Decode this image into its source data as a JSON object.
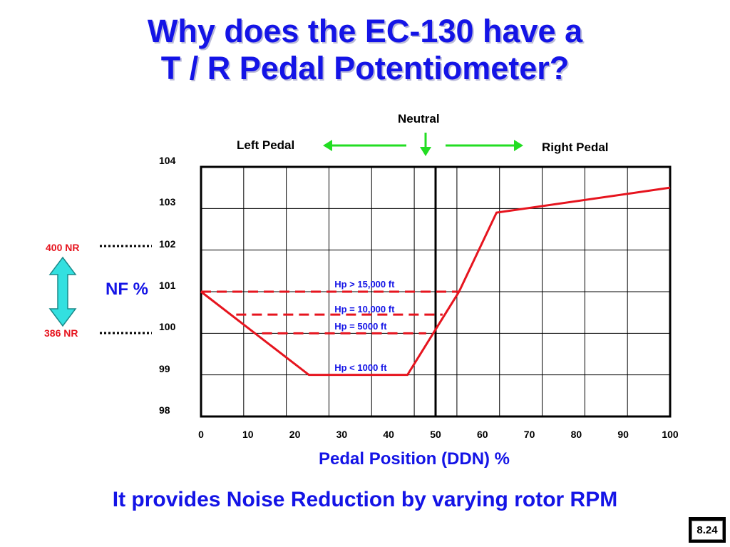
{
  "slide": {
    "title_line1": "Why does the EC-130 have a",
    "title_line2": "T / R Pedal Potentiometer?",
    "subtitle": "It provides Noise Reduction by varying rotor RPM",
    "page_number": "8.24"
  },
  "annotations": {
    "neutral": "Neutral",
    "left_pedal": "Left Pedal",
    "right_pedal": "Right Pedal",
    "nr_high": "400 NR",
    "nr_low": "386 NR",
    "nf_label": "NF %"
  },
  "colors": {
    "title": "#1414e6",
    "curve": "#e6141e",
    "arrow_green": "#22dd22",
    "double_arrow": "#33e0e0",
    "grid": "#000000"
  },
  "chart_data": {
    "type": "line",
    "title": "",
    "xlabel": "Pedal Position (DDN) %",
    "ylabel": "NF %",
    "xlim": [
      0,
      100
    ],
    "ylim": [
      98,
      104
    ],
    "x_ticks": [
      "0",
      "10",
      "20",
      "30",
      "40",
      "50",
      "60",
      "70",
      "80",
      "90",
      "100"
    ],
    "y_ticks": [
      "104",
      "103",
      "102",
      "101",
      "100",
      "99",
      "98"
    ],
    "grid": true,
    "series": [
      {
        "name": "Hp < 1000 ft",
        "style": "solid",
        "points": [
          [
            0,
            101
          ],
          [
            23,
            99
          ],
          [
            44,
            99
          ],
          [
            55,
            101
          ],
          [
            63,
            102.9
          ],
          [
            100,
            103.5
          ]
        ]
      },
      {
        "name": "Hp > 15,000 ft",
        "style": "dashed",
        "points": [
          [
            0,
            101
          ],
          [
            55,
            101
          ]
        ]
      },
      {
        "name": "Hp = 10,000 ft",
        "style": "dashed",
        "points": [
          [
            7.5,
            100.45
          ],
          [
            51.5,
            100.45
          ]
        ]
      },
      {
        "name": "Hp = 5000 ft",
        "style": "dashed",
        "points": [
          [
            13,
            100
          ],
          [
            48,
            100
          ]
        ]
      }
    ],
    "series_labels": [
      {
        "text": "Hp > 15,000 ft",
        "x": 28,
        "y": 101.2
      },
      {
        "text": "Hp = 10,000 ft",
        "x": 28,
        "y": 100.6
      },
      {
        "text": "Hp = 5000 ft",
        "x": 28,
        "y": 100.2
      },
      {
        "text": "Hp < 1000 ft",
        "x": 28,
        "y": 99.2
      }
    ]
  }
}
